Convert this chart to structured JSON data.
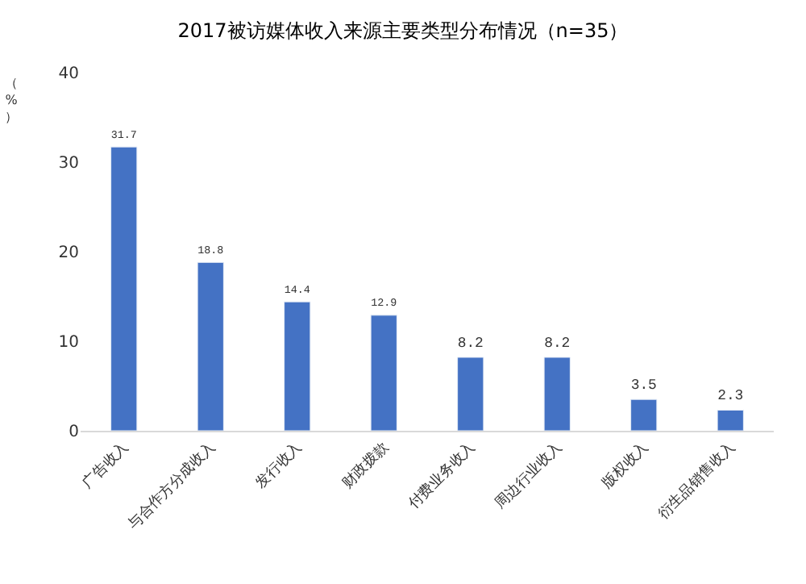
{
  "chart_data": {
    "type": "bar",
    "title": "2017被访媒体收入来源主要类型分布情况（n=35）",
    "ylabel": "（%）",
    "categories": [
      "广告收入",
      "与合作方分成收入",
      "发行收入",
      "财政拨款",
      "付费业务收入",
      "周边行业收入",
      "版权收入",
      "衍生品销售收入"
    ],
    "values": [
      31.7,
      18.8,
      14.4,
      12.9,
      8.2,
      8.2,
      3.5,
      2.3
    ],
    "color": "#4472c4",
    "ylim": [
      0,
      40
    ],
    "yticks": [
      0,
      10,
      20,
      30,
      40
    ],
    "data_labels": true
  }
}
